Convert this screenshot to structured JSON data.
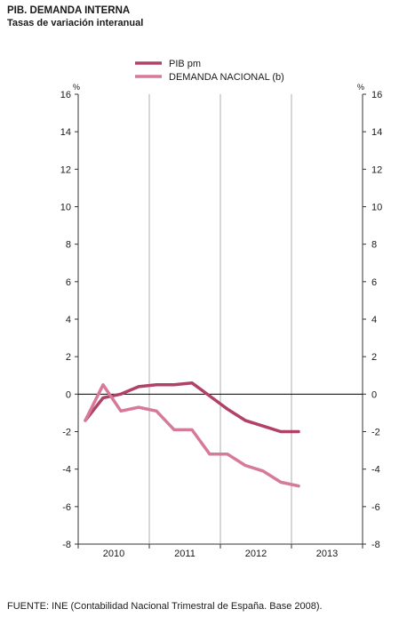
{
  "header": {
    "title": "PIB. DEMANDA INTERNA",
    "subtitle": "Tasas de variación interanual"
  },
  "footer": {
    "source": "FUENTE: INE (Contabilidad Nacional Trimestral de España. Base 2008)."
  },
  "chart_data": {
    "type": "line",
    "title": "PIB. DEMANDA INTERNA",
    "subtitle": "Tasas de variación interanual",
    "y_unit": "%",
    "ylim": [
      -8,
      16
    ],
    "yticks": [
      -8,
      -6,
      -4,
      -2,
      0,
      2,
      4,
      6,
      8,
      10,
      12,
      14,
      16
    ],
    "year_labels": [
      "2010",
      "2011",
      "2012",
      "2013"
    ],
    "x": [
      "2010-I",
      "2010-II",
      "2010-III",
      "2010-IV",
      "2011-I",
      "2011-II",
      "2011-III",
      "2011-IV",
      "2012-I",
      "2012-II",
      "2012-III",
      "2012-IV",
      "2013-I"
    ],
    "series": [
      {
        "name": "PIB pm",
        "color": "#b0426a",
        "values": [
          -1.4,
          -0.2,
          0.0,
          0.4,
          0.5,
          0.5,
          0.6,
          -0.1,
          -0.8,
          -1.4,
          -1.7,
          -2.0,
          -2.0
        ]
      },
      {
        "name": "DEMANDA NACIONAL (b)",
        "color": "#d67a98",
        "values": [
          -1.4,
          0.5,
          -0.9,
          -0.7,
          -0.9,
          -1.9,
          -1.9,
          -3.2,
          -3.2,
          -3.8,
          -4.1,
          -4.7,
          -4.9
        ]
      }
    ],
    "legend_position": "top-center",
    "grid": "vertical lines between years"
  }
}
